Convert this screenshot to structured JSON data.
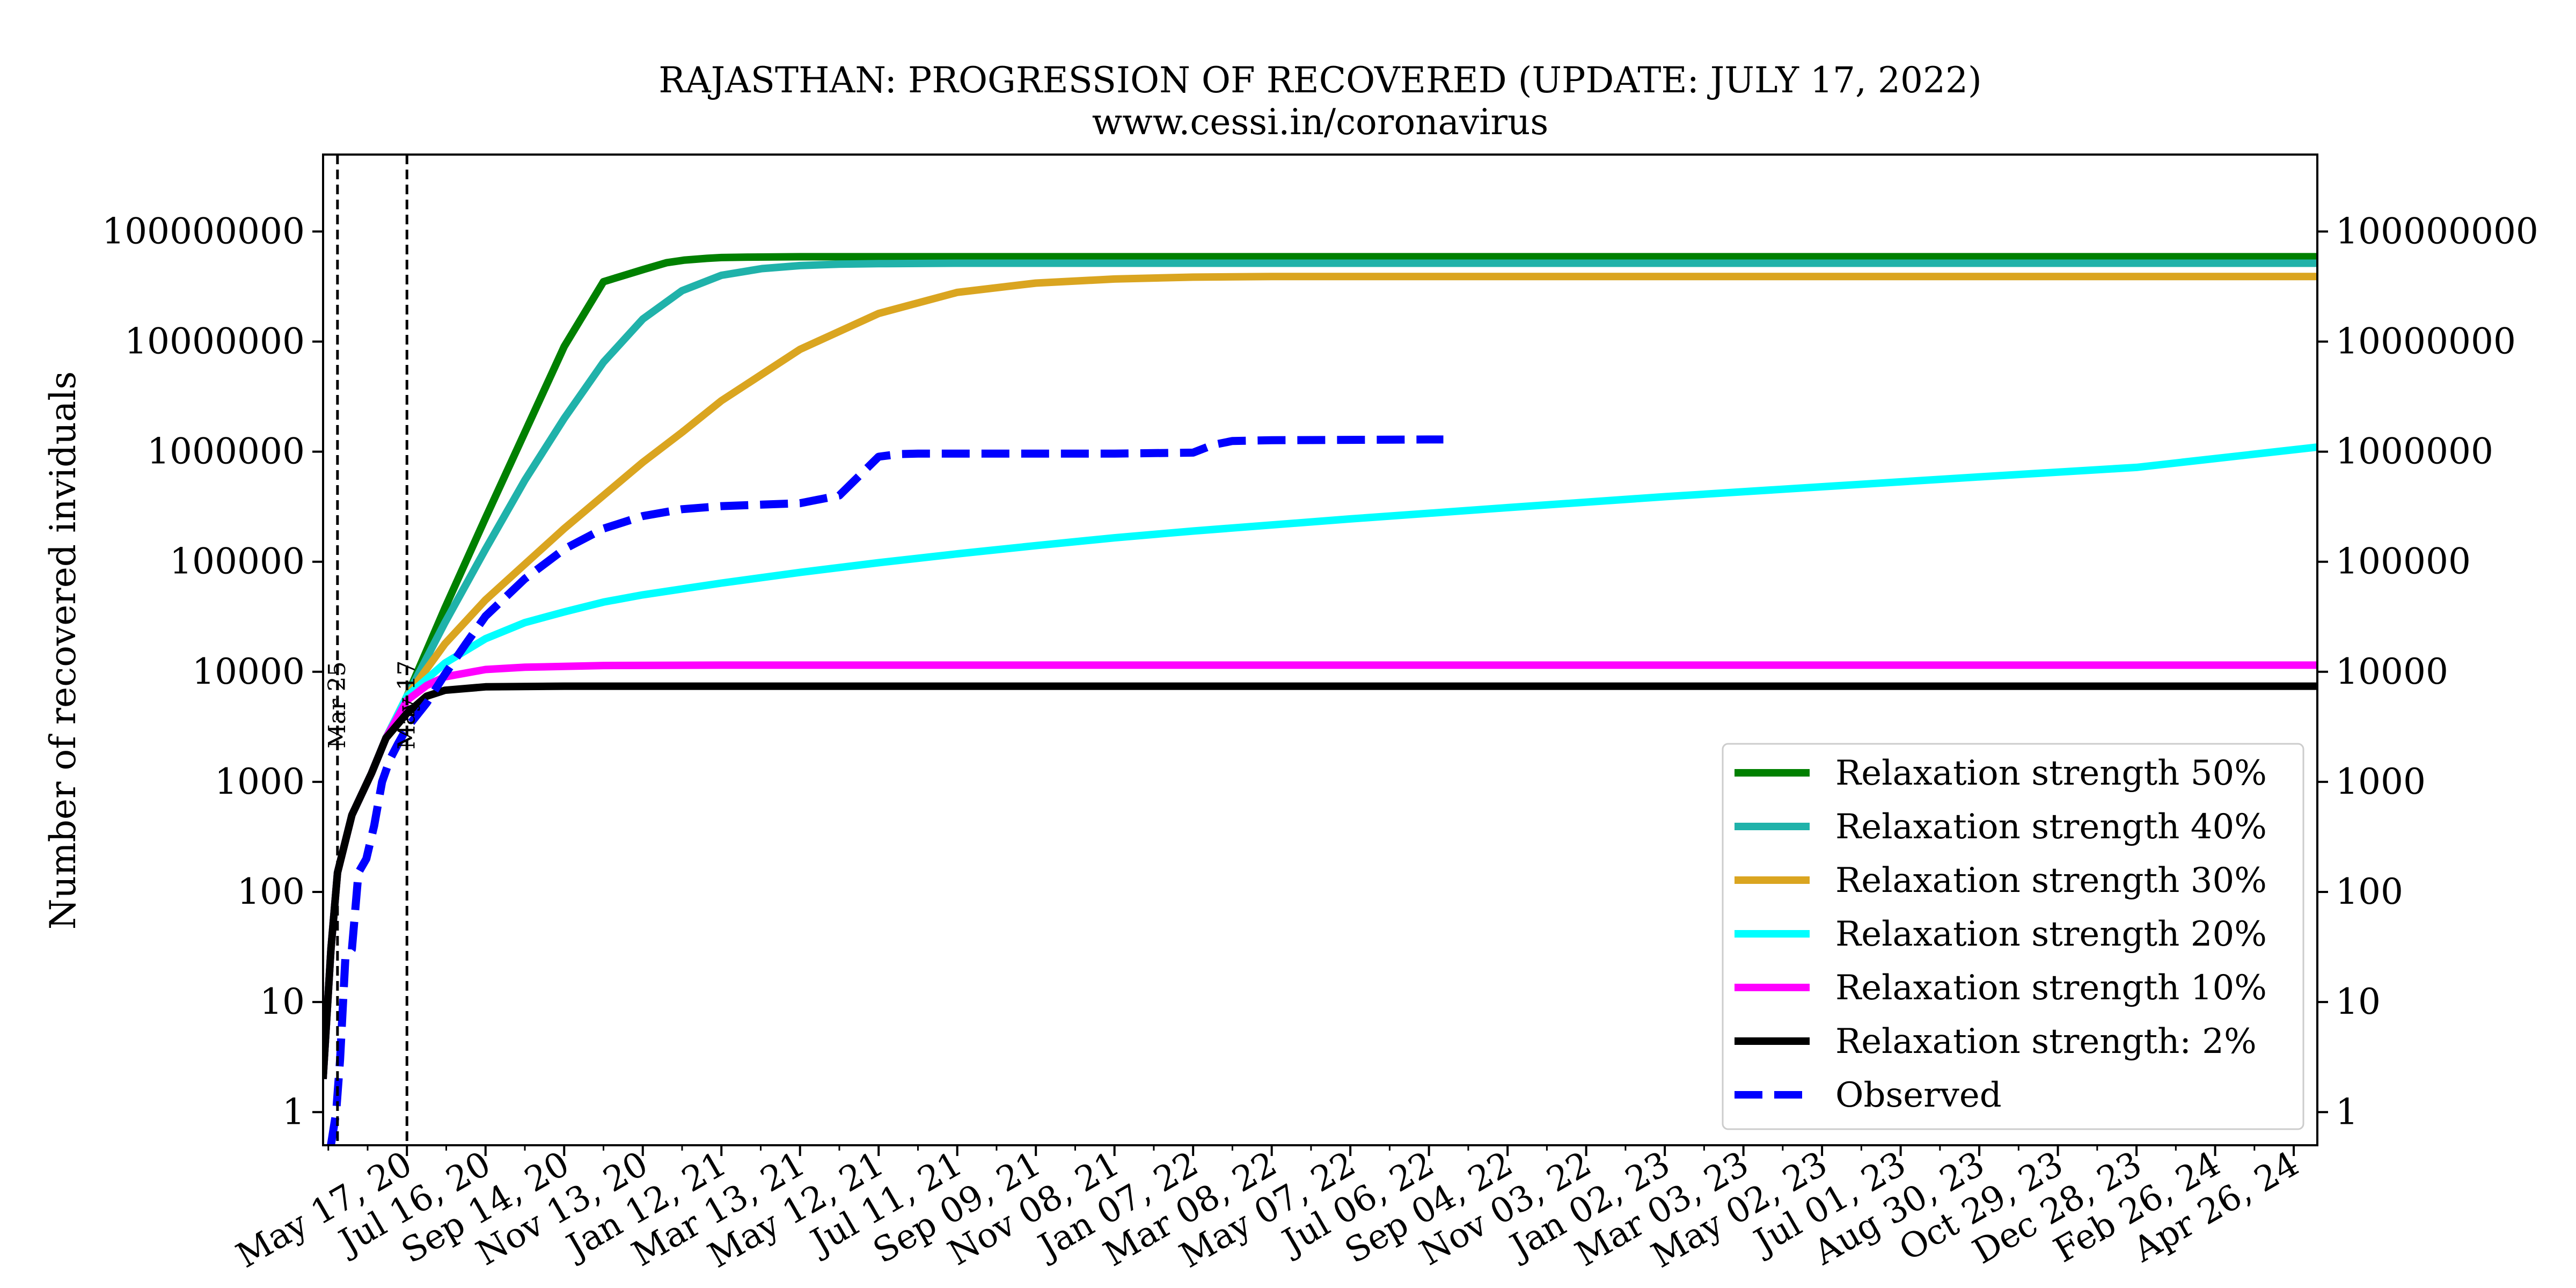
{
  "chart_data": {
    "type": "line",
    "title": "RAJASTHAN: PROGRESSION OF RECOVERED (UPDATE: JULY 17, 2022)",
    "subtitle": "www.cessi.in/coronavirus",
    "xlabel": "",
    "ylabel": "Number of recovered inviduals",
    "yscale": "log",
    "ylim": [
      0.5,
      500000000
    ],
    "xlim": [
      "2020-03-14",
      "2024-05-14"
    ],
    "grid": false,
    "legend_position": "bottom-right",
    "x_ticks": [
      "May 17, 20",
      "Jul 16, 20",
      "Sep 14, 20",
      "Nov 13, 20",
      "Jan 12, 21",
      "Mar 13, 21",
      "May 12, 21",
      "Jul 11, 21",
      "Sep 09, 21",
      "Nov 08, 21",
      "Jan 07, 22",
      "Mar 08, 22",
      "May 07, 22",
      "Jul 06, 22",
      "Sep 04, 22",
      "Nov 03, 22",
      "Jan 02, 23",
      "Mar 03, 23",
      "May 02, 23",
      "Jul 01, 23",
      "Aug 30, 23",
      "Oct 29, 23",
      "Dec 28, 23",
      "Feb 26, 24",
      "Apr 26, 24"
    ],
    "y_ticks": [
      1,
      10,
      100,
      1000,
      10000,
      100000,
      1000000,
      10000000,
      100000000
    ],
    "y_tick_labels": [
      "1",
      "10",
      "100",
      "1000",
      "10000",
      "100000",
      "1000000",
      "10000000",
      "100000000"
    ],
    "annotations": [
      {
        "label": "Mar 25",
        "x": "2020-03-25",
        "y": 5000
      },
      {
        "label": "May 17",
        "x": "2020-05-17",
        "y": 5000
      }
    ],
    "series": [
      {
        "name": "Relaxation strength 50%",
        "color": "#008000",
        "style": "solid",
        "x": [
          "2020-03-14",
          "2020-03-20",
          "2020-03-25",
          "2020-04-05",
          "2020-04-20",
          "2020-05-01",
          "2020-05-17",
          "2020-06-15",
          "2020-07-16",
          "2020-08-15",
          "2020-09-14",
          "2020-10-14",
          "2020-11-13",
          "2020-12-01",
          "2020-12-15",
          "2021-01-01",
          "2021-01-12",
          "2021-02-01",
          "2021-03-13",
          "2021-05-12",
          "2022-01-07",
          "2024-05-14"
        ],
        "y": [
          2,
          30,
          150,
          500,
          1200,
          2500,
          6000,
          38000,
          250000,
          1500000,
          9000000,
          35000000,
          45000000,
          52000000,
          55000000,
          57000000,
          58000000,
          58500000,
          59000000,
          59000000,
          59000000,
          59000000
        ]
      },
      {
        "name": "Relaxation strength 40%",
        "color": "#20b2aa",
        "style": "solid",
        "x": [
          "2020-03-14",
          "2020-03-20",
          "2020-03-25",
          "2020-04-05",
          "2020-04-20",
          "2020-05-01",
          "2020-05-17",
          "2020-06-15",
          "2020-07-16",
          "2020-08-15",
          "2020-09-14",
          "2020-10-14",
          "2020-11-13",
          "2020-12-13",
          "2021-01-12",
          "2021-02-12",
          "2021-03-13",
          "2021-04-12",
          "2021-05-12",
          "2021-07-11",
          "2022-01-07",
          "2024-05-14"
        ],
        "y": [
          2,
          30,
          150,
          500,
          1200,
          2500,
          6000,
          28000,
          130000,
          550000,
          2000000,
          6500000,
          16000000,
          29000000,
          40000000,
          46000000,
          49000000,
          50500000,
          51000000,
          51500000,
          51500000,
          51500000
        ]
      },
      {
        "name": "Relaxation strength 30%",
        "color": "#daa520",
        "style": "solid",
        "x": [
          "2020-03-14",
          "2020-03-20",
          "2020-03-25",
          "2020-04-05",
          "2020-04-20",
          "2020-05-01",
          "2020-05-17",
          "2020-06-15",
          "2020-07-16",
          "2020-08-15",
          "2020-09-14",
          "2020-10-14",
          "2020-11-13",
          "2020-12-13",
          "2021-01-12",
          "2021-03-13",
          "2021-05-12",
          "2021-07-11",
          "2021-09-09",
          "2021-11-08",
          "2022-01-07",
          "2022-03-08",
          "2022-05-07",
          "2024-05-14"
        ],
        "y": [
          2,
          30,
          150,
          500,
          1200,
          2500,
          6000,
          18000,
          45000,
          95000,
          200000,
          400000,
          800000,
          1500000,
          2900000,
          8500000,
          18000000,
          28000000,
          34000000,
          37000000,
          38500000,
          39000000,
          39000000,
          39000000
        ]
      },
      {
        "name": "Relaxation strength 20%",
        "color": "#00ffff",
        "style": "solid",
        "x": [
          "2020-03-14",
          "2020-03-20",
          "2020-03-25",
          "2020-04-05",
          "2020-04-20",
          "2020-05-01",
          "2020-05-17",
          "2020-06-15",
          "2020-07-16",
          "2020-08-15",
          "2020-09-14",
          "2020-10-14",
          "2020-11-13",
          "2021-01-12",
          "2021-03-13",
          "2021-05-12",
          "2021-07-11",
          "2021-09-09",
          "2021-11-08",
          "2022-01-07",
          "2022-05-07",
          "2022-09-04",
          "2023-01-02",
          "2023-05-02",
          "2023-08-30",
          "2023-12-28",
          "2024-05-14"
        ],
        "y": [
          2,
          30,
          150,
          500,
          1200,
          2500,
          6000,
          12000,
          20000,
          28000,
          35000,
          43000,
          50000,
          64000,
          80000,
          98000,
          118000,
          140000,
          165000,
          190000,
          245000,
          310000,
          390000,
          480000,
          590000,
          720000,
          1100000
        ]
      },
      {
        "name": "Relaxation strength 10%",
        "color": "#ff00ff",
        "style": "solid",
        "x": [
          "2020-03-14",
          "2020-03-20",
          "2020-03-25",
          "2020-04-05",
          "2020-04-20",
          "2020-05-01",
          "2020-05-17",
          "2020-06-01",
          "2020-06-15",
          "2020-07-16",
          "2020-08-15",
          "2020-10-14",
          "2021-01-12",
          "2024-05-14"
        ],
        "y": [
          2,
          30,
          150,
          500,
          1200,
          2500,
          5500,
          7500,
          9000,
          10500,
          11000,
          11400,
          11500,
          11500
        ]
      },
      {
        "name": "Relaxation strength: 2%",
        "color": "#000000",
        "style": "solid",
        "x": [
          "2020-03-14",
          "2020-03-20",
          "2020-03-25",
          "2020-04-05",
          "2020-04-20",
          "2020-05-01",
          "2020-05-17",
          "2020-06-01",
          "2020-06-15",
          "2020-07-16",
          "2020-09-14",
          "2024-05-14"
        ],
        "y": [
          2,
          30,
          150,
          500,
          1200,
          2500,
          4200,
          6000,
          6800,
          7300,
          7400,
          7400
        ]
      },
      {
        "name": "Observed",
        "color": "#0000ff",
        "style": "dashed",
        "x": [
          "2020-03-20",
          "2020-03-24",
          "2020-03-27",
          "2020-03-31",
          "2020-04-05",
          "2020-04-10",
          "2020-04-16",
          "2020-04-22",
          "2020-04-28",
          "2020-05-04",
          "2020-05-10",
          "2020-05-17",
          "2020-06-01",
          "2020-06-15",
          "2020-07-01",
          "2020-07-16",
          "2020-08-15",
          "2020-09-14",
          "2020-10-14",
          "2020-11-13",
          "2020-12-13",
          "2021-01-12",
          "2021-02-12",
          "2021-03-13",
          "2021-04-12",
          "2021-04-27",
          "2021-05-12",
          "2021-05-27",
          "2021-06-11",
          "2021-07-11",
          "2021-09-09",
          "2021-11-08",
          "2022-01-07",
          "2022-01-22",
          "2022-02-06",
          "2022-03-08",
          "2022-05-07",
          "2022-07-06",
          "2022-07-17"
        ],
        "y": [
          0.5,
          1,
          3,
          25,
          30,
          150,
          200,
          400,
          1000,
          1600,
          2200,
          3100,
          5200,
          9500,
          18000,
          32000,
          70000,
          130000,
          200000,
          260000,
          300000,
          320000,
          330000,
          340000,
          400000,
          600000,
          900000,
          950000,
          960000,
          960000,
          960000,
          960000,
          980000,
          1150000,
          1250000,
          1270000,
          1280000,
          1290000,
          1290000
        ]
      }
    ]
  }
}
